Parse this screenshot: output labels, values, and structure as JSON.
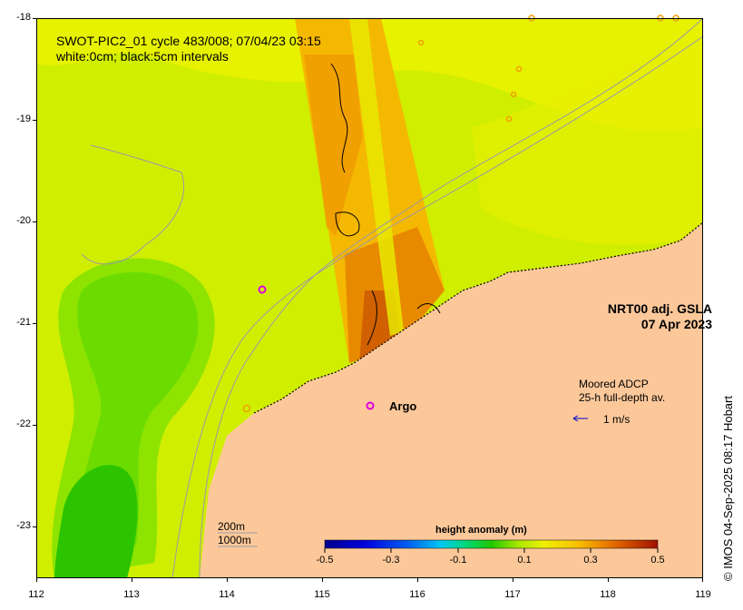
{
  "title": {
    "line1": "SWOT-PIC2_01 cycle 483/008; 07/04/23 03:15",
    "line2": "white:0cm; black:5cm intervals"
  },
  "gsla": {
    "line1": "NRT00 adj. GSLA",
    "line2": "07 Apr 2023"
  },
  "adcp": {
    "line1": "Moored ADCP",
    "line2": "25-h full-depth av.",
    "scale": "1 m/s"
  },
  "argo": {
    "label": "Argo"
  },
  "depth_legend": {
    "line1": "200m",
    "line2": "1000m"
  },
  "colorbar": {
    "title": "height anomaly (m)",
    "ticks": [
      "-0.5",
      "-0.3",
      "-0.1",
      "0.1",
      "0.3",
      "0.5"
    ],
    "min": -0.5,
    "max": 0.5
  },
  "credit": "© IMOS 04-Sep-2025 08:17 Hobart",
  "axes": {
    "x_ticks": [
      "112",
      "113",
      "114",
      "115",
      "116",
      "117",
      "118",
      "119"
    ],
    "y_ticks": [
      "-18",
      "-19",
      "-20",
      "-21",
      "-22",
      "-23"
    ],
    "lon_range": [
      112,
      119
    ],
    "lat_range": [
      -18,
      -23.5
    ]
  },
  "colors": {
    "ocean_base": "#d8f000",
    "land": "#fcc89a",
    "cold_eddy": "#7ee000",
    "cold_core": "#2ec800",
    "swath_warm": "#f4a000",
    "swath_hot": "#d86000",
    "bathymetry": "#9a9aa6",
    "argo_marker": "#e000e0",
    "adcp_arrow": "#0000cc"
  }
}
